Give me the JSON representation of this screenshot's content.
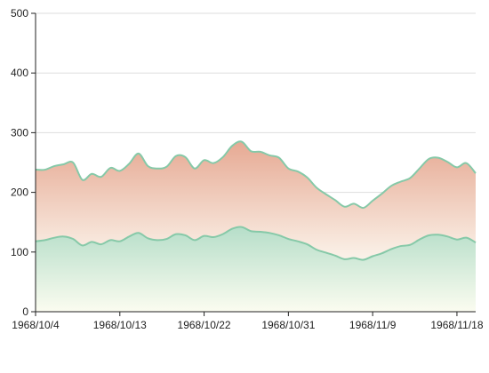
{
  "chart_data": {
    "type": "area",
    "stacked": true,
    "curve": "smooth",
    "x_format": "YYYY/M/D",
    "x": [
      "1968/10/4",
      "1968/10/5",
      "1968/10/6",
      "1968/10/7",
      "1968/10/8",
      "1968/10/9",
      "1968/10/10",
      "1968/10/11",
      "1968/10/12",
      "1968/10/13",
      "1968/10/14",
      "1968/10/15",
      "1968/10/16",
      "1968/10/17",
      "1968/10/18",
      "1968/10/19",
      "1968/10/20",
      "1968/10/21",
      "1968/10/22",
      "1968/10/23",
      "1968/10/24",
      "1968/10/25",
      "1968/10/26",
      "1968/10/27",
      "1968/10/28",
      "1968/10/29",
      "1968/10/30",
      "1968/10/31",
      "1968/11/1",
      "1968/11/2",
      "1968/11/3",
      "1968/11/4",
      "1968/11/5",
      "1968/11/6",
      "1968/11/7",
      "1968/11/8",
      "1968/11/9",
      "1968/11/10",
      "1968/11/11",
      "1968/11/12",
      "1968/11/13",
      "1968/11/14",
      "1968/11/15",
      "1968/11/16",
      "1968/11/17",
      "1968/11/18",
      "1968/11/19",
      "1968/11/20"
    ],
    "series": [
      {
        "color_line": "#86c9a8",
        "color_fill_top": "#b6dec9",
        "color_fill_bottom": "#fbfcf0",
        "values": [
          118,
          120,
          124,
          126,
          122,
          111,
          117,
          113,
          120,
          118,
          126,
          132,
          123,
          120,
          122,
          130,
          128,
          120,
          127,
          125,
          130,
          139,
          142,
          135,
          134,
          132,
          128,
          122,
          118,
          113,
          104,
          99,
          94,
          88,
          90,
          87,
          93,
          98,
          105,
          110,
          112,
          121,
          128,
          129,
          126,
          121,
          124,
          116
        ]
      },
      {
        "color_line": "#86c9a8",
        "color_fill_top": "#e6a993",
        "color_fill_bottom": "#fbf3ea",
        "values": [
          120,
          118,
          120,
          121,
          128,
          110,
          114,
          113,
          121,
          118,
          122,
          133,
          121,
          120,
          121,
          131,
          131,
          120,
          127,
          124,
          129,
          139,
          143,
          134,
          134,
          130,
          130,
          118,
          117,
          112,
          104,
          98,
          93,
          88,
          91,
          87,
          93,
          100,
          106,
          108,
          112,
          119,
          128,
          129,
          125,
          121,
          125,
          116
        ]
      }
    ],
    "y_ticks": [
      0,
      100,
      200,
      300,
      400,
      500
    ],
    "ylim": [
      0,
      500
    ],
    "x_tick_labels": [
      "1968/10/4",
      "1968/10/13",
      "1968/10/22",
      "1968/10/31",
      "1968/11/9",
      "1968/11/18"
    ],
    "grid": "horizontal",
    "axis_color": "#222222",
    "grid_color": "#dddddd"
  }
}
